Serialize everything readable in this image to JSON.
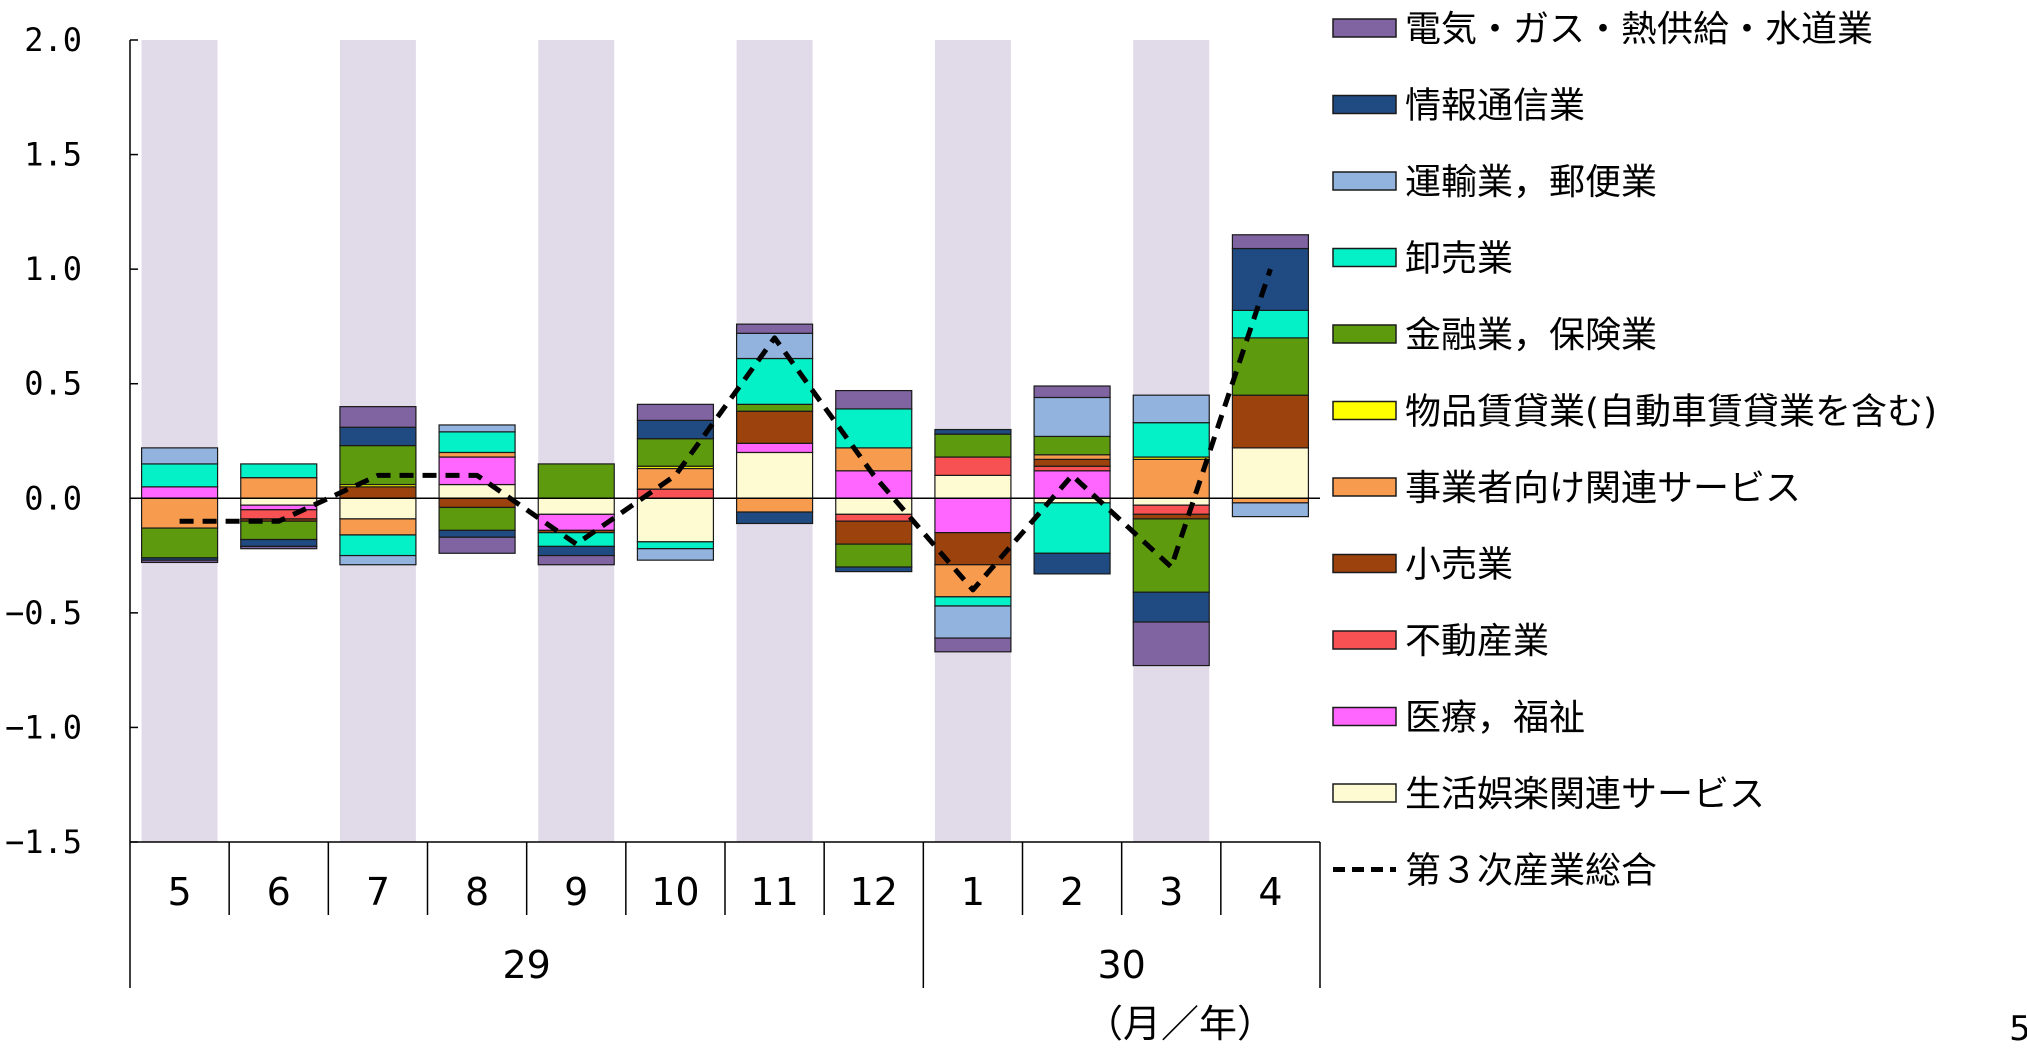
{
  "page_number": "5",
  "chart_data": {
    "type": "bar",
    "stacked": true,
    "title": "",
    "xlabel": "（月／年）",
    "ylabel": "",
    "ylim": [
      -1.5,
      2.0
    ],
    "yticks": [
      2.0,
      1.5,
      1.0,
      0.5,
      0.0,
      -0.5,
      -1.0,
      -1.5
    ],
    "ytick_labels": [
      "2.0",
      "1.5",
      "1.0",
      "0.5",
      "0.0",
      "−0.5",
      "−1.0",
      "−1.5"
    ],
    "grid": false,
    "legend_position": "right",
    "shaded_months": [
      "5",
      "7",
      "9",
      "11",
      "1",
      "3"
    ],
    "shade_color": "#e1dbe9",
    "categories": [
      "5",
      "6",
      "7",
      "8",
      "9",
      "10",
      "11",
      "12",
      "1",
      "2",
      "3",
      "4"
    ],
    "year_groups": [
      {
        "label": "29",
        "start": 0,
        "end": 7
      },
      {
        "label": "30",
        "start": 8,
        "end": 11
      }
    ],
    "series": [
      {
        "name": "生活娯楽関連サービス",
        "color": "#fefbd2",
        "values": [
          0.0,
          -0.03,
          -0.09,
          0.06,
          -0.07,
          -0.19,
          0.2,
          -0.07,
          0.1,
          -0.02,
          -0.03,
          0.22
        ]
      },
      {
        "name": "医療，福祉",
        "color": "#ff66ff",
        "values": [
          0.05,
          -0.02,
          0.0,
          0.12,
          -0.07,
          0.0,
          0.04,
          0.12,
          -0.15,
          0.12,
          0.0,
          0.0
        ]
      },
      {
        "name": "不動産業",
        "color": "#f85153",
        "values": [
          0.0,
          -0.04,
          0.0,
          0.0,
          0.0,
          0.04,
          0.0,
          -0.03,
          0.08,
          0.02,
          -0.04,
          0.0
        ]
      },
      {
        "name": "小売業",
        "color": "#9c420c",
        "values": [
          0.0,
          -0.01,
          0.05,
          -0.04,
          -0.01,
          0.0,
          0.14,
          -0.1,
          -0.14,
          0.03,
          -0.02,
          0.23
        ]
      },
      {
        "name": "事業者向け関連サービス",
        "color": "#f79b4e",
        "values": [
          -0.13,
          0.09,
          -0.07,
          0.02,
          0.0,
          0.09,
          -0.06,
          0.1,
          -0.14,
          0.02,
          0.17,
          -0.02
        ]
      },
      {
        "name": "物品賃貸業(自動車賃貸業を含む)",
        "color": "#ffff00",
        "values": [
          0.0,
          0.0,
          0.01,
          0.0,
          0.0,
          0.01,
          0.0,
          0.0,
          0.0,
          0.0,
          0.01,
          0.0
        ]
      },
      {
        "name": "金融業，保険業",
        "color": "#5e9a0e",
        "values": [
          -0.13,
          -0.08,
          0.17,
          -0.1,
          0.15,
          0.12,
          0.03,
          -0.1,
          0.1,
          0.08,
          -0.32,
          0.25
        ]
      },
      {
        "name": "卸売業",
        "color": "#04f0c6",
        "values": [
          0.1,
          0.06,
          -0.09,
          0.09,
          -0.06,
          -0.03,
          0.2,
          0.17,
          -0.04,
          -0.22,
          0.15,
          0.12
        ]
      },
      {
        "name": "運輸業，郵便業",
        "color": "#93b3df",
        "values": [
          0.07,
          0.0,
          -0.04,
          0.03,
          0.0,
          -0.05,
          0.11,
          0.0,
          -0.14,
          0.17,
          0.12,
          -0.06
        ]
      },
      {
        "name": "情報通信業",
        "color": "#1f4b82",
        "values": [
          -0.01,
          -0.03,
          0.08,
          -0.03,
          -0.04,
          0.08,
          -0.05,
          -0.02,
          0.02,
          -0.09,
          -0.13,
          0.27
        ]
      },
      {
        "name": "電気・ガス・熱供給・水道業",
        "color": "#8064a2",
        "values": [
          -0.01,
          -0.01,
          0.09,
          -0.07,
          -0.04,
          0.07,
          0.04,
          0.08,
          -0.06,
          0.05,
          -0.19,
          0.06
        ]
      }
    ],
    "line_series": {
      "name": "第３次産業総合",
      "color": "#000000",
      "style": "dashed",
      "values": [
        -0.1,
        -0.1,
        0.1,
        0.1,
        -0.2,
        0.1,
        0.7,
        0.1,
        -0.4,
        0.1,
        -0.3,
        1.0
      ]
    },
    "legend": [
      {
        "label": "電気・ガス・熱供給・水道業",
        "color": "#8064a2",
        "kind": "box"
      },
      {
        "label": "情報通信業",
        "color": "#1f4b82",
        "kind": "box"
      },
      {
        "label": "運輸業，郵便業",
        "color": "#93b3df",
        "kind": "box"
      },
      {
        "label": "卸売業",
        "color": "#04f0c6",
        "kind": "box"
      },
      {
        "label": "金融業，保険業",
        "color": "#5e9a0e",
        "kind": "box"
      },
      {
        "label": "物品賃貸業(自動車賃貸業を含む)",
        "color": "#ffff00",
        "kind": "box"
      },
      {
        "label": "事業者向け関連サービス",
        "color": "#f79b4e",
        "kind": "box"
      },
      {
        "label": "小売業",
        "color": "#9c420c",
        "kind": "box"
      },
      {
        "label": "不動産業",
        "color": "#f85153",
        "kind": "box"
      },
      {
        "label": "医療，福祉",
        "color": "#ff66ff",
        "kind": "box"
      },
      {
        "label": "生活娯楽関連サービス",
        "color": "#fefbd2",
        "kind": "box"
      },
      {
        "label": "第３次産業総合",
        "color": "#000000",
        "kind": "dashed-line"
      }
    ]
  }
}
